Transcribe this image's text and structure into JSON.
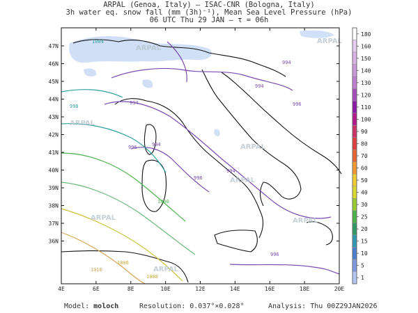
{
  "header": {
    "line1": "ARPAL (Genoa, Italy)  —  ISAC-CNR (Bologna, Italy)",
    "line2": "3h water eq. snow fall (mm (3h)⁻¹), Mean Sea Level Pressure (hPa)",
    "line3": "06 UTC Thu 29 JAN  —  τ = 06h"
  },
  "map": {
    "lon_labels": [
      "4E",
      "6E",
      "8E",
      "10E",
      "12E",
      "14E",
      "16E",
      "18E",
      "20E"
    ],
    "lat_labels": [
      "47N",
      "46N",
      "45N",
      "44N",
      "43N",
      "42N",
      "41N",
      "40N",
      "39N",
      "38N",
      "37N",
      "36N"
    ],
    "watermark": "ARPAL",
    "isobar_labels": {
      "996": "996",
      "994": "994",
      "998": "998",
      "1000": "1000",
      "1004": "1004",
      "1006": "1006",
      "1008": "1008",
      "1010": "1010"
    }
  },
  "colorbar": {
    "ticks": [
      "180",
      "160",
      "150",
      "140",
      "130",
      "120",
      "110",
      "100",
      "90",
      "80",
      "70",
      "60",
      "50",
      "40",
      "30",
      "25",
      "20",
      "15",
      "10",
      "5",
      "1"
    ],
    "colors": [
      "#ffffff",
      "#e6ccf0",
      "#d9b3e6",
      "#cc99db",
      "#bf80d1",
      "#a64dbd",
      "#8c1aa8",
      "#b31a8c",
      "#cc3366",
      "#e04040",
      "#e86633",
      "#f29933",
      "#f2cc33",
      "#d9d933",
      "#99cc33",
      "#4db34d",
      "#339966",
      "#3399b3",
      "#4d80cc",
      "#8099e0",
      "#b3c6f2"
    ]
  },
  "footer": {
    "model_label": "Model:",
    "model_value": "moloch",
    "resolution": "Resolution: 0.037°×0.028°",
    "analysis": "Analysis: Thu 00Z29JAN2026"
  }
}
